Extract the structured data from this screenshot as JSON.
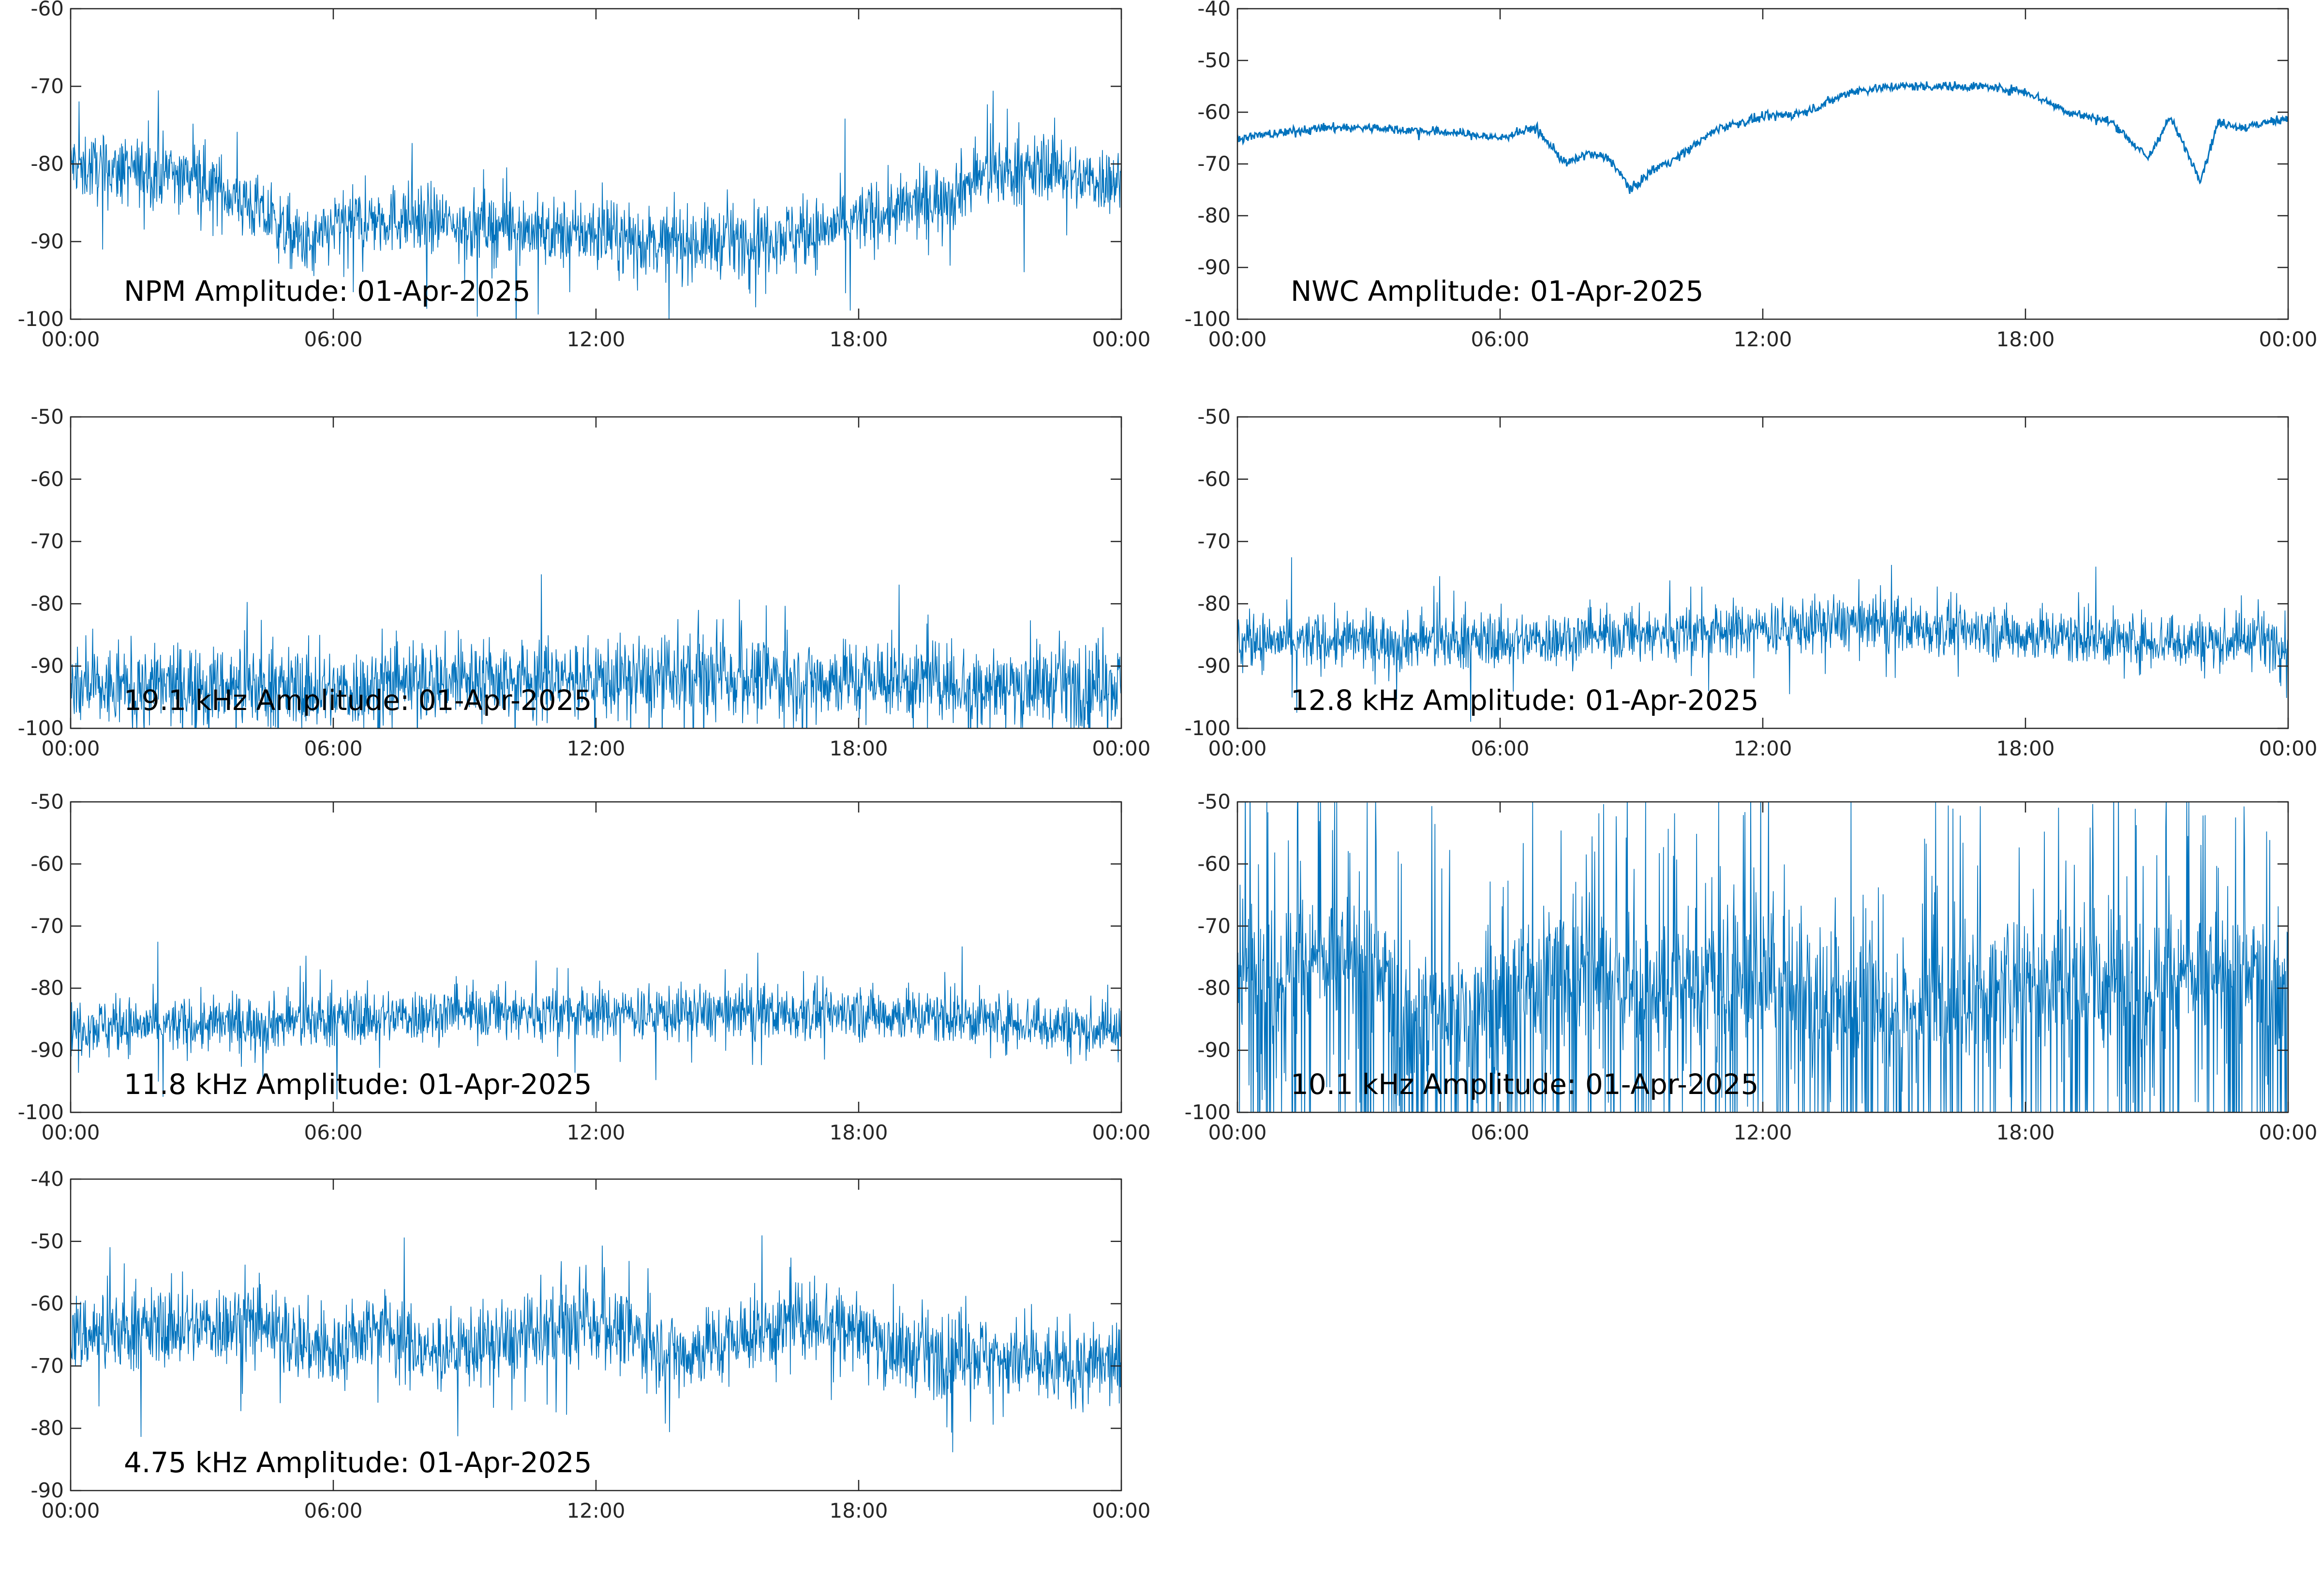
{
  "colors": {
    "series": "#0072BD",
    "axes": "#262626",
    "background": "#ffffff"
  },
  "chart_data": [
    {
      "type": "line",
      "title": "NPM Amplitude: 01-Apr-2025",
      "xlabel": "",
      "ylabel": "",
      "xlim": [
        0,
        24
      ],
      "ylim": [
        -100,
        -60
      ],
      "xticks": [
        "00:00",
        "06:00",
        "12:00",
        "18:00",
        "00:00"
      ],
      "yticks": [
        -60,
        -70,
        -80,
        -90,
        -100
      ],
      "noise": "medium",
      "series": [
        {
          "x": [
            0,
            1,
            2,
            3,
            4,
            5,
            5.5,
            6,
            7,
            8,
            9,
            10,
            11,
            12,
            13,
            14,
            15,
            16,
            17,
            18,
            19,
            20,
            21,
            22,
            22.5,
            23,
            24
          ],
          "values": [
            -80,
            -81,
            -81,
            -82,
            -85,
            -89,
            -91,
            -88,
            -87,
            -87,
            -88,
            -88,
            -89,
            -89,
            -90,
            -90,
            -90,
            -89,
            -89,
            -87,
            -86,
            -84,
            -81,
            -81,
            -80,
            -82,
            -82
          ]
        }
      ]
    },
    {
      "type": "line",
      "title": "NWC Amplitude: 01-Apr-2025",
      "xlabel": "",
      "ylabel": "",
      "xlim": [
        0,
        24
      ],
      "ylim": [
        -100,
        -40
      ],
      "xticks": [
        "00:00",
        "06:00",
        "12:00",
        "18:00",
        "00:00"
      ],
      "yticks": [
        -40,
        -50,
        -60,
        -70,
        -80,
        -90,
        -100
      ],
      "noise": "low",
      "series": [
        {
          "x": [
            0,
            1,
            2,
            3,
            4,
            5,
            6,
            6.8,
            7.5,
            8,
            8.5,
            9,
            9.5,
            10,
            11,
            12,
            13,
            14,
            15,
            16,
            17,
            18,
            19,
            20,
            20.8,
            21.3,
            22,
            22.4,
            23,
            24
          ],
          "values": [
            -65,
            -64,
            -63,
            -63,
            -63.5,
            -64,
            -65,
            -63,
            -70,
            -68,
            -69,
            -75,
            -71,
            -69,
            -63,
            -61,
            -60,
            -56,
            -55,
            -55,
            -55,
            -56,
            -60,
            -62,
            -69,
            -61,
            -73,
            -62,
            -63,
            -61
          ]
        }
      ]
    },
    {
      "type": "line",
      "title": "19.1 kHz Amplitude: 01-Apr-2025",
      "xlabel": "",
      "ylabel": "",
      "xlim": [
        0,
        24
      ],
      "ylim": [
        -100,
        -50
      ],
      "xticks": [
        "00:00",
        "06:00",
        "12:00",
        "18:00",
        "00:00"
      ],
      "yticks": [
        -50,
        -60,
        -70,
        -80,
        -90,
        -100
      ],
      "noise": "high",
      "series": [
        {
          "x": [
            0,
            3,
            6,
            9,
            12,
            15,
            18,
            21,
            24
          ],
          "values": [
            -94,
            -93,
            -94,
            -92,
            -92,
            -92,
            -92,
            -93,
            -93
          ]
        }
      ]
    },
    {
      "type": "line",
      "title": "12.8 kHz Amplitude: 01-Apr-2025",
      "xlabel": "",
      "ylabel": "",
      "xlim": [
        0,
        24
      ],
      "ylim": [
        -100,
        -50
      ],
      "xticks": [
        "00:00",
        "06:00",
        "12:00",
        "18:00",
        "00:00"
      ],
      "yticks": [
        -50,
        -60,
        -70,
        -80,
        -90,
        -100
      ],
      "noise": "medium",
      "series": [
        {
          "x": [
            0,
            3,
            6,
            9,
            12,
            14,
            16,
            18,
            21,
            24
          ],
          "values": [
            -86,
            -86,
            -86,
            -85,
            -84,
            -83,
            -84,
            -85,
            -86,
            -86
          ]
        }
      ]
    },
    {
      "type": "line",
      "title": "11.8 kHz Amplitude: 01-Apr-2025",
      "xlabel": "",
      "ylabel": "",
      "xlim": [
        0,
        24
      ],
      "ylim": [
        -100,
        -50
      ],
      "xticks": [
        "00:00",
        "06:00",
        "12:00",
        "18:00",
        "00:00"
      ],
      "yticks": [
        -50,
        -60,
        -70,
        -80,
        -90,
        -100
      ],
      "noise": "medium",
      "series": [
        {
          "x": [
            0,
            3,
            6,
            9,
            12,
            15,
            18,
            21,
            24
          ],
          "values": [
            -86,
            -86,
            -85,
            -84,
            -84,
            -84,
            -84,
            -85,
            -87
          ]
        }
      ]
    },
    {
      "type": "line",
      "title": "10.1 kHz Amplitude: 01-Apr-2025",
      "xlabel": "",
      "ylabel": "",
      "xlim": [
        0,
        24
      ],
      "ylim": [
        -100,
        -50
      ],
      "xticks": [
        "00:00",
        "06:00",
        "12:00",
        "18:00",
        "00:00"
      ],
      "yticks": [
        -50,
        -60,
        -70,
        -80,
        -90,
        -100
      ],
      "noise": "extreme",
      "series": [
        {
          "x": [
            0,
            3,
            4,
            6,
            8,
            9,
            12,
            15,
            18,
            21,
            24
          ],
          "values": [
            -77,
            -76,
            -84,
            -82,
            -76,
            -80,
            -78,
            -85,
            -78,
            -79,
            -78
          ]
        }
      ]
    },
    {
      "type": "line",
      "title": "4.75 kHz Amplitude: 01-Apr-2025",
      "xlabel": "",
      "ylabel": "",
      "xlim": [
        0,
        24
      ],
      "ylim": [
        -90,
        -40
      ],
      "xticks": [
        "00:00",
        "06:00",
        "12:00",
        "18:00",
        "00:00"
      ],
      "yticks": [
        -40,
        -50,
        -60,
        -70,
        -80,
        -90
      ],
      "noise": "high",
      "series": [
        {
          "x": [
            0,
            2,
            4,
            6,
            7,
            8,
            10,
            12,
            14,
            16,
            17.5,
            19,
            21,
            22,
            24
          ],
          "values": [
            -65,
            -64,
            -63,
            -68,
            -63,
            -68,
            -66,
            -63,
            -68,
            -64,
            -62,
            -68,
            -68,
            -70,
            -70
          ]
        }
      ]
    }
  ]
}
